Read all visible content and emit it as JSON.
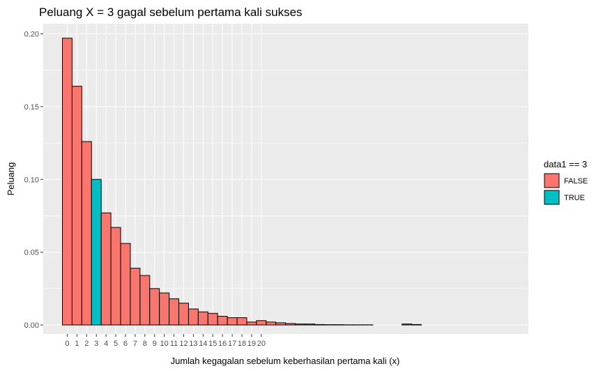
{
  "chart_data": {
    "type": "bar",
    "title": "Peluang X = 3 gagal sebelum pertama kali sukses",
    "xlabel": "Jumlah kegagalan sebelum keberhasilan pertama kali (x)",
    "ylabel": "Peluang",
    "ylim": [
      0,
      0.2
    ],
    "yticks": [
      "0.00",
      "0.05",
      "0.10",
      "0.15",
      "0.20"
    ],
    "x": [
      0,
      1,
      2,
      3,
      4,
      5,
      6,
      7,
      8,
      9,
      10,
      11,
      12,
      13,
      14,
      15,
      16,
      17,
      18,
      19,
      20,
      21,
      22,
      23,
      24,
      25,
      26,
      27,
      28,
      29,
      30,
      31,
      32,
      33,
      34,
      35,
      36,
      37,
      38,
      39,
      40,
      41,
      42,
      43,
      44,
      45,
      46,
      47,
      48,
      49
    ],
    "xtick_labels": [
      "0",
      "1",
      "2",
      "3",
      "4",
      "5",
      "6",
      "7",
      "8",
      "9",
      "10",
      "11",
      "12",
      "13",
      "14",
      "15",
      "16",
      "17",
      "18",
      "19",
      "20"
    ],
    "values": [
      0.197,
      0.164,
      0.126,
      0.1,
      0.077,
      0.067,
      0.056,
      0.039,
      0.034,
      0.025,
      0.022,
      0.018,
      0.015,
      0.011,
      0.009,
      0.008,
      0.006,
      0.005,
      0.005,
      0.002,
      0.003,
      0.002,
      0.0015,
      0.001,
      0.0007,
      0.0007,
      0.0003,
      0.0002,
      0.0002,
      0.0001,
      0.0001,
      0.0001,
      0,
      0,
      0,
      0.0007,
      0.0003,
      0,
      0,
      0,
      0,
      0,
      0,
      0,
      0,
      0,
      0,
      0,
      0,
      0
    ],
    "highlight": [
      false,
      false,
      false,
      true,
      false,
      false,
      false,
      false,
      false,
      false,
      false,
      false,
      false,
      false,
      false,
      false,
      false,
      false,
      false,
      false,
      false,
      false,
      false,
      false,
      false,
      false,
      false,
      false,
      false,
      false,
      false,
      false,
      false,
      false,
      false,
      false,
      false,
      false,
      false,
      false,
      false,
      false,
      false,
      false,
      false,
      false,
      false,
      false,
      false,
      false
    ],
    "grid": true,
    "legend": {
      "title": "data1 == 3",
      "placement": "right",
      "entries": [
        {
          "label": "FALSE",
          "color": "#F8766D"
        },
        {
          "label": "TRUE",
          "color": "#00BFC4"
        }
      ]
    },
    "colors": {
      "panel": "#EBEBEB",
      "grid": "#FFFFFF",
      "bar_outline": "#000000"
    }
  }
}
